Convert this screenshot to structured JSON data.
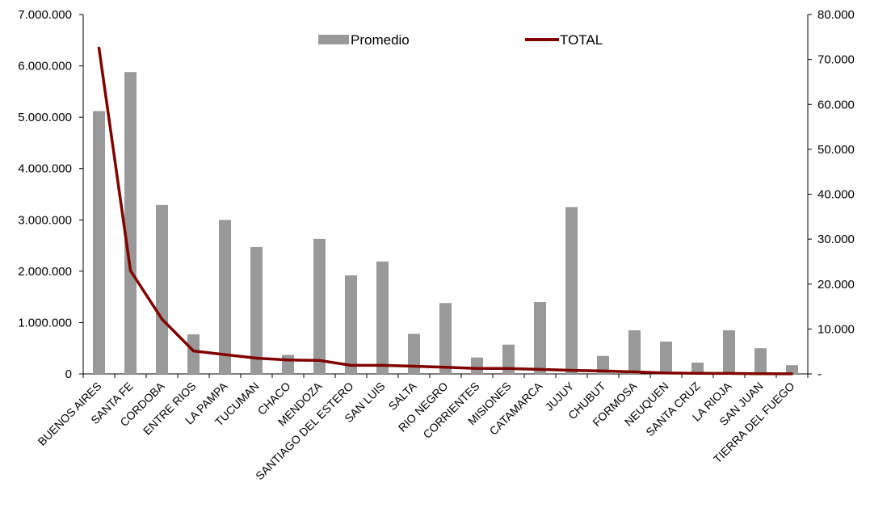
{
  "chart_data": {
    "type": "bar",
    "categories": [
      "BUENOS AIRES",
      "SANTA FE",
      "CORDOBA",
      "ENTRE RIOS",
      "LA PAMPA",
      "TUCUMAN",
      "CHACO",
      "MENDOZA",
      "SANTIAGO DEL ESTERO",
      "SAN LUIS",
      "SALTA",
      "RIO NEGRO",
      "CORRIENTES",
      "MISIONES",
      "CATAMARCA",
      "JUJUY",
      "CHUBUT",
      "FORMOSA",
      "NEUQUEN",
      "SANTA CRUZ",
      "LA RIOJA",
      "SAN JUAN",
      "TIERRA DEL FUEGO"
    ],
    "series": [
      {
        "name": "Promedio",
        "type": "bar",
        "axis": "left",
        "color": "#999999",
        "values": [
          5120000,
          5880000,
          3290000,
          770000,
          3000000,
          2470000,
          370000,
          2630000,
          1920000,
          2190000,
          780000,
          1380000,
          320000,
          570000,
          1400000,
          3250000,
          350000,
          850000,
          630000,
          220000,
          850000,
          500000,
          170000
        ]
      },
      {
        "name": "TOTAL",
        "type": "line",
        "axis": "right",
        "color": "#800000",
        "values": [
          72600,
          23000,
          12200,
          5100,
          4300,
          3500,
          3100,
          3000,
          1900,
          1900,
          1700,
          1500,
          1200,
          1200,
          1000,
          800,
          650,
          450,
          200,
          150,
          100,
          60,
          20
        ]
      }
    ],
    "y_left": {
      "ylim": [
        0,
        7000000
      ],
      "ticks": [
        0,
        1000000,
        2000000,
        3000000,
        4000000,
        5000000,
        6000000,
        7000000
      ],
      "tick_labels": [
        "0",
        "1.000.000",
        "2.000.000",
        "3.000.000",
        "4.000.000",
        "5.000.000",
        "6.000.000",
        "7.000.000"
      ]
    },
    "y_right": {
      "ylim": [
        0,
        80000
      ],
      "ticks": [
        0,
        10000,
        20000,
        30000,
        40000,
        50000,
        60000,
        70000,
        80000
      ],
      "tick_labels": [
        "-",
        "10.000",
        "20.000",
        "30.000",
        "40.000",
        "50.000",
        "60.000",
        "70.000",
        "80.000"
      ]
    },
    "legend": {
      "placement": "top-center",
      "items": [
        "Promedio",
        "TOTAL"
      ]
    },
    "grid": false,
    "title": "",
    "xlabel": "",
    "ylabel": ""
  }
}
